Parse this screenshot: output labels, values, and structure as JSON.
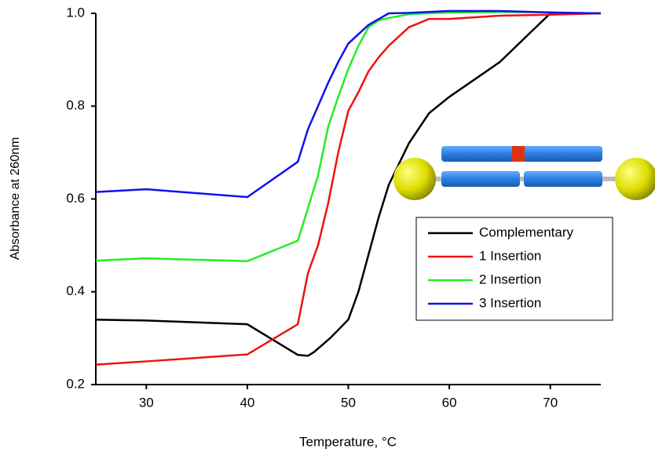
{
  "chart_data": {
    "type": "line",
    "x_label": "Temperature, °C",
    "y_label": "Absorbance at 260nm",
    "xlim": [
      25,
      75
    ],
    "xticks": [
      30,
      40,
      50,
      60,
      70
    ],
    "ylim": [
      0.2,
      1.0
    ],
    "yticks": [
      0.2,
      0.4,
      0.6,
      0.8,
      {
        "value": 1.0,
        "label": "1.0"
      }
    ],
    "legend": "right",
    "series": [
      {
        "name": "Complementary",
        "color": "#000000",
        "x": [
          25,
          30,
          40,
          45,
          46,
          46.6,
          48.2,
          50,
          51,
          52,
          53,
          54,
          56,
          58,
          60,
          65,
          70,
          75
        ],
        "values": [
          0.34,
          0.338,
          0.33,
          0.264,
          0.262,
          0.27,
          0.3,
          0.34,
          0.4,
          0.48,
          0.56,
          0.63,
          0.72,
          0.785,
          0.82,
          0.895,
          1.0,
          1.0
        ]
      },
      {
        "name": "1 Insertion",
        "color": "#ee1111",
        "x": [
          25,
          30,
          40,
          45,
          46,
          47,
          48,
          49,
          50,
          51,
          52,
          53,
          54,
          56,
          58,
          60,
          65,
          70,
          75
        ],
        "values": [
          0.243,
          0.25,
          0.265,
          0.33,
          0.44,
          0.5,
          0.59,
          0.7,
          0.79,
          0.83,
          0.875,
          0.905,
          0.93,
          0.97,
          0.988,
          0.988,
          0.995,
          0.997,
          1.0
        ]
      },
      {
        "name": "2 Insertion",
        "color": "#22ee22",
        "x": [
          25,
          30,
          40,
          45,
          46,
          47,
          48,
          49,
          50,
          51,
          52,
          53,
          54,
          56,
          60,
          65,
          70,
          75
        ],
        "values": [
          0.467,
          0.472,
          0.466,
          0.51,
          0.58,
          0.65,
          0.755,
          0.82,
          0.88,
          0.93,
          0.97,
          0.985,
          0.99,
          0.998,
          1.002,
          1.003,
          1.002,
          1.0
        ]
      },
      {
        "name": "3 Insertion",
        "color": "#1111ee",
        "x": [
          25,
          30,
          40,
          45,
          46,
          47,
          48,
          49,
          50,
          52,
          54,
          56,
          60,
          65,
          70,
          75
        ],
        "values": [
          0.615,
          0.621,
          0.604,
          0.68,
          0.75,
          0.8,
          0.85,
          0.895,
          0.935,
          0.975,
          1.0,
          1.001,
          1.005,
          1.005,
          1.002,
          1.0
        ]
      }
    ]
  }
}
